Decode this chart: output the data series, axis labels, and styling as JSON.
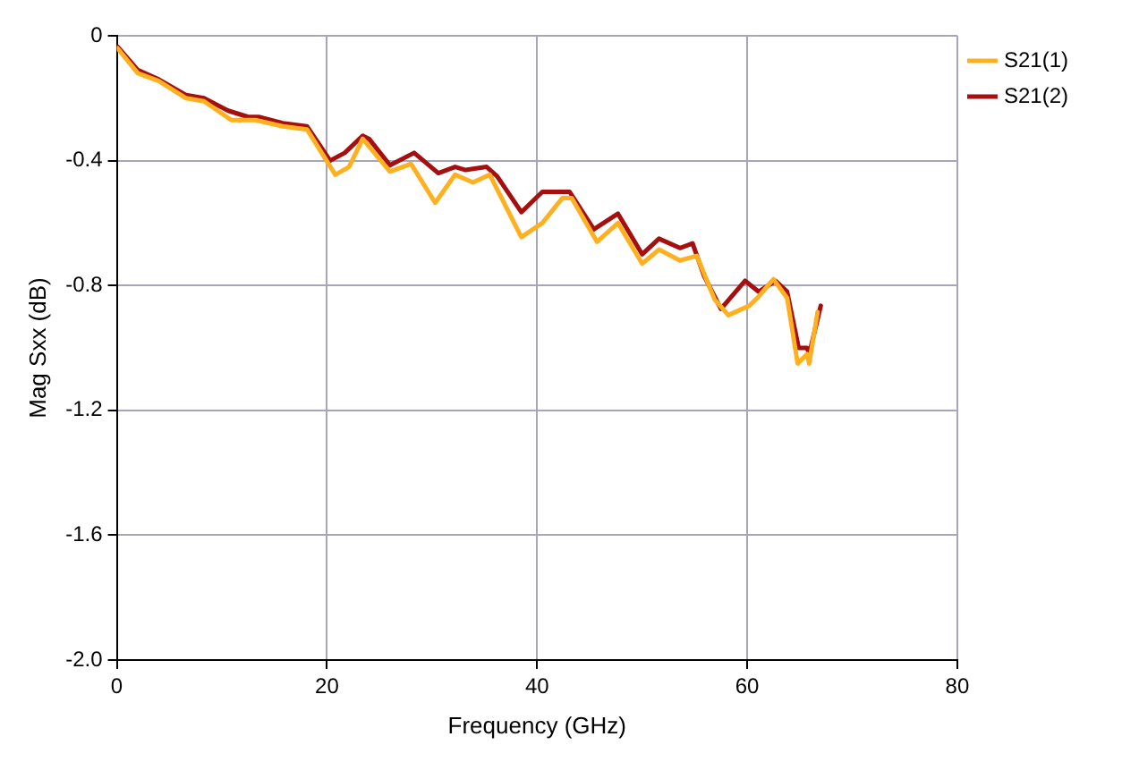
{
  "chart_data": {
    "type": "line",
    "xlabel": "Frequency (GHz)",
    "ylabel": "Mag Sxx (dB)",
    "xlim": [
      0,
      80
    ],
    "xticks": [
      0,
      20,
      40,
      60,
      80
    ],
    "ylim": [
      -2.0,
      0
    ],
    "yticks": [
      {
        "value": -2.0,
        "label": "-2.0"
      },
      {
        "value": -1.6,
        "label": "-1.6"
      },
      {
        "value": -1.2,
        "label": "-1.2"
      },
      {
        "value": -0.8,
        "label": "-0.8"
      },
      {
        "value": -0.4,
        "label": "-0.4"
      },
      0
    ],
    "grid": true,
    "legend": "top right",
    "marker": "none",
    "line_style": "solid",
    "series": [
      {
        "name": "S21(1)",
        "color": "#ffb020",
        "x": [
          0.07,
          2,
          4,
          6.6,
          8.3,
          10.9,
          13.2,
          15.8,
          18.1,
          20.8,
          22.1,
          23.4,
          26.0,
          28.0,
          30.3,
          32.2,
          33.9,
          35.5,
          38.5,
          40.5,
          42.4,
          43.3,
          45.7,
          47.7,
          50.0,
          51.6,
          53.6,
          55.2,
          56.9,
          58.2,
          60.2,
          61.1,
          62.5,
          63.8,
          64.8,
          65.7,
          65.9,
          66.7
        ],
        "values": [
          -0.04,
          -0.12,
          -0.145,
          -0.2,
          -0.21,
          -0.27,
          -0.27,
          -0.29,
          -0.3,
          -0.445,
          -0.42,
          -0.33,
          -0.435,
          -0.41,
          -0.535,
          -0.445,
          -0.47,
          -0.445,
          -0.645,
          -0.6,
          -0.52,
          -0.52,
          -0.66,
          -0.6,
          -0.73,
          -0.685,
          -0.72,
          -0.705,
          -0.845,
          -0.895,
          -0.865,
          -0.835,
          -0.78,
          -0.84,
          -1.05,
          -1.02,
          -1.05,
          -0.885
        ]
      },
      {
        "name": "S21(2)",
        "color": "#a50f0f",
        "x": [
          0.07,
          2,
          4,
          6.6,
          8.3,
          10.6,
          12.5,
          13.5,
          15.8,
          18.1,
          20.3,
          21.7,
          23.4,
          24.0,
          26.0,
          28.3,
          30.6,
          32.2,
          33.2,
          35.2,
          36.2,
          38.5,
          40.5,
          43.1,
          45.4,
          47.7,
          50.0,
          51.6,
          53.6,
          54.8,
          55.9,
          57.5,
          59.8,
          61.1,
          62.7,
          63.8,
          64.9,
          65.7,
          65.9,
          67.0
        ],
        "values": [
          -0.035,
          -0.11,
          -0.14,
          -0.19,
          -0.2,
          -0.24,
          -0.26,
          -0.26,
          -0.28,
          -0.29,
          -0.4,
          -0.375,
          -0.32,
          -0.33,
          -0.415,
          -0.375,
          -0.44,
          -0.42,
          -0.43,
          -0.42,
          -0.45,
          -0.565,
          -0.5,
          -0.5,
          -0.62,
          -0.57,
          -0.7,
          -0.65,
          -0.68,
          -0.665,
          -0.77,
          -0.875,
          -0.785,
          -0.82,
          -0.785,
          -0.82,
          -1.0,
          -1.0,
          -1.02,
          -0.865
        ]
      }
    ]
  }
}
